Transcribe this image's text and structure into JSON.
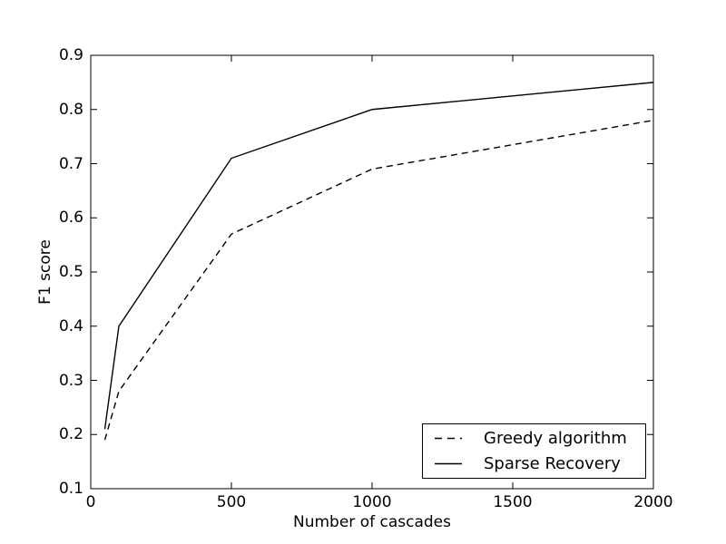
{
  "figure": {
    "background_color": "#ffffff",
    "line_color": "#000000"
  },
  "chart_data": {
    "type": "line",
    "title": "",
    "xlabel": "Number of cascades",
    "ylabel": "F1 score",
    "xlim": [
      0,
      2000
    ],
    "ylim": [
      0.1,
      0.9
    ],
    "xtick_labels": [
      "0",
      "500",
      "1000",
      "1500",
      "2000"
    ],
    "ytick_labels": [
      "0.1",
      "0.2",
      "0.3",
      "0.4",
      "0.5",
      "0.6",
      "0.7",
      "0.8",
      "0.9"
    ],
    "grid": false,
    "legend_position": "lower right",
    "x": [
      50,
      100,
      500,
      1000,
      2000
    ],
    "series": [
      {
        "name": "Greedy algorithm",
        "line_style": "dashed",
        "color": "#000000",
        "values": [
          0.19,
          0.28,
          0.57,
          0.69,
          0.78
        ]
      },
      {
        "name": "Sparse Recovery",
        "line_style": "solid",
        "color": "#000000",
        "values": [
          0.21,
          0.4,
          0.71,
          0.8,
          0.85
        ]
      }
    ]
  }
}
